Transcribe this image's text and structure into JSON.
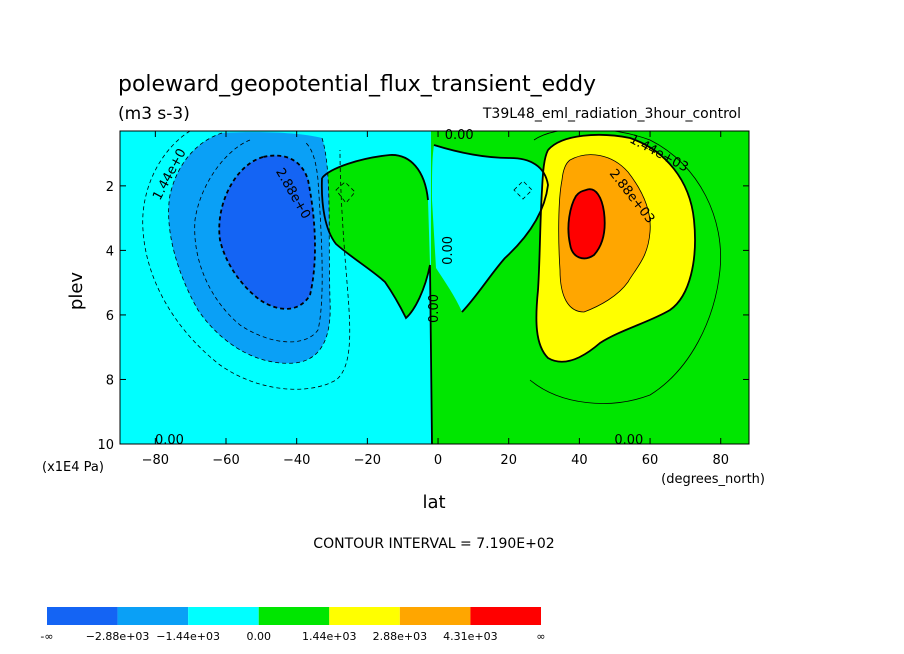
{
  "chart_data": {
    "type": "contour",
    "title": "poleward_geopotential_flux_transient_eddy",
    "units": "(m3 s-3)",
    "subtitle": "T39L48_eml_radiation_3hour_control",
    "xlabel": "lat",
    "x_units": "(degrees_north)",
    "ylabel": "plev",
    "y_units": "(x1E4 Pa)",
    "xlim": [
      -90,
      88
    ],
    "ylim": [
      0.3,
      10
    ],
    "y_inverted": true,
    "x_ticks": [
      -80,
      -60,
      -40,
      -20,
      0,
      20,
      40,
      60,
      80
    ],
    "x_tick_labels": [
      "−80",
      "−60",
      "−40",
      "−20",
      "0",
      "20",
      "40",
      "60",
      "80"
    ],
    "y_ticks": [
      2,
      4,
      6,
      8,
      10
    ],
    "y_tick_labels": [
      "2",
      "4",
      "6",
      "8",
      "10"
    ],
    "contour_interval_text": "CONTOUR INTERVAL = 7.190E+02",
    "contour_labels": [
      {
        "text": "1.44e+0",
        "lat": -75,
        "plev": 1.7,
        "angle": -62
      },
      {
        "text": "2.88e+0",
        "lat": -42,
        "plev": 2.3,
        "angle": 60
      },
      {
        "text": "1.44e+03",
        "lat": 62,
        "plev": 1.1,
        "angle": 28
      },
      {
        "text": "2.88e+03",
        "lat": 54,
        "plev": 2.4,
        "angle": 52
      },
      {
        "text": "0.00",
        "lat": 6,
        "plev": 0.55,
        "angle": 0
      },
      {
        "text": "0.00",
        "lat": 4,
        "plev": 4.0,
        "angle": -90
      },
      {
        "text": "0.00",
        "lat": 0,
        "plev": 5.8,
        "angle": -90
      },
      {
        "text": "0.00",
        "lat": -76,
        "plev": 10,
        "angle": 0
      },
      {
        "text": "0.00",
        "lat": 54,
        "plev": 10,
        "angle": 0
      }
    ],
    "fields": [
      {
        "name": "southern-hemisphere-negative-lobe",
        "min_value": "< -2.88e+03",
        "center_lat": -42,
        "center_plev": 3.5
      },
      {
        "name": "northern-hemisphere-positive-lobe",
        "max_value": "> 4.31e+03",
        "center_lat": 42,
        "center_plev": 3.0
      }
    ],
    "colorbar": {
      "levels": [
        "-∞",
        "−2.88e+03",
        "−1.44e+03",
        "0.00",
        "1.44e+03",
        "2.88e+03",
        "4.31e+03",
        "∞"
      ],
      "colors": [
        "#1464f4",
        "#0aa0f6",
        "#00ffff",
        "#00e600",
        "#ffff00",
        "#ffa600",
        "#ff0000"
      ]
    }
  }
}
